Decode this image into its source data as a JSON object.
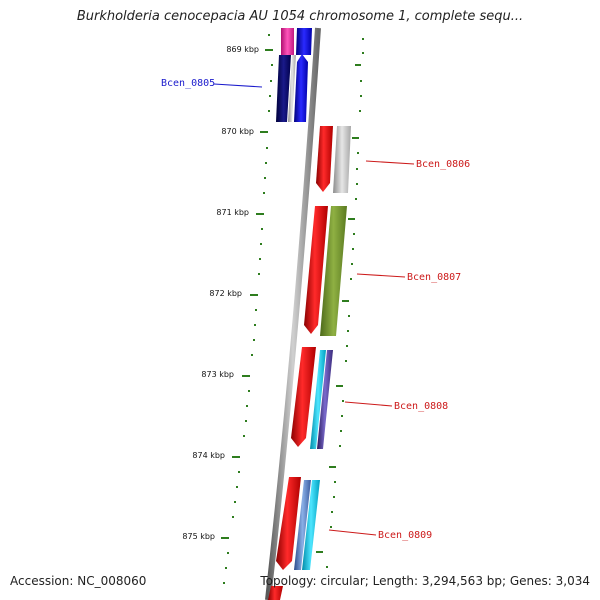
{
  "title": "Burkholderia cenocepacia AU 1054 chromosome 1, complete sequ...",
  "accession": "Accession: NC_008060",
  "summary": "Topology: circular; Length: 3,294,563 bp; Genes: 3,034",
  "colors": {
    "backbone": "#8a8a8a",
    "tick": "#2e7d1e",
    "strand_minus_label": "#1a1acc",
    "strand_plus_label": "#cc1a1a"
  },
  "scale": {
    "unit": "kbp",
    "major_ticks": [
      "869 kbp",
      "870 kbp",
      "871 kbp",
      "872 kbp",
      "873 kbp",
      "874 kbp",
      "875 kbp"
    ]
  },
  "genes": [
    {
      "name": "Bcen_0805",
      "color": "#1a1acc"
    },
    {
      "name": "Bcen_0806",
      "color": "#cc1a1a"
    },
    {
      "name": "Bcen_0807",
      "color": "#cc1a1a"
    },
    {
      "name": "Bcen_0808",
      "color": "#cc1a1a"
    },
    {
      "name": "Bcen_0809",
      "color": "#cc1a1a"
    }
  ]
}
